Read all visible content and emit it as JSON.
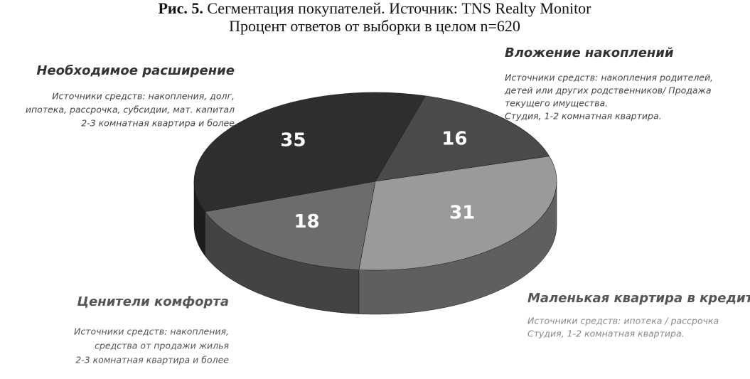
{
  "chart_data": {
    "type": "pie3d",
    "figure_label": "Рис. 5.",
    "title": "Сегментация покупателей. Источник: TNS Realty Monitor",
    "subtitle": "Процент ответов от выборки в целом n=620",
    "categories": [
      "Вложение накоплений",
      "Маленькая квартира в кредит",
      "Ценители комфорта",
      "Необходимое расширение"
    ],
    "values": [
      16,
      31,
      18,
      35
    ],
    "colors": [
      "#4a4a4a",
      "#9a9a9a",
      "#6c6c6c",
      "#2e2e2e"
    ],
    "descriptions": [
      [
        "Источники средств: накопления родителей,",
        "детей или других родственников/ Продажа",
        "текущего имущества.",
        "Студия, 1-2 комнатная квартира."
      ],
      [
        "Источники средств: ипотека / рассрочка",
        "Студия, 1-2 комнатная квартира."
      ],
      [
        "Источники  средств: накопления,",
        "средства от продажи жилья",
        "2-3 комнатная квартира и более"
      ],
      [
        "Источники средств: накопления, долг,",
        "ипотека, рассрочка, субсидии, мат. капитал",
        "2-3 комнатная квартира и более"
      ]
    ]
  }
}
